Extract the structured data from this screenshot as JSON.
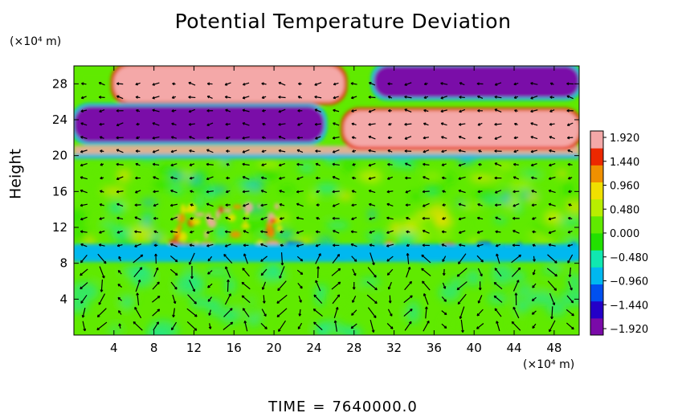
{
  "chart_data": {
    "type": "heatmap",
    "title": "Potential Temperature Deviation",
    "ylabel": "Height",
    "xunit": "(×10⁴ m)",
    "yunit": "(×10⁴ m)",
    "x_ticks": [
      4,
      8,
      12,
      16,
      20,
      24,
      28,
      32,
      36,
      40,
      44,
      48
    ],
    "y_ticks": [
      4,
      8,
      12,
      16,
      20,
      24,
      28
    ],
    "xlim": [
      0,
      50.5
    ],
    "ylim": [
      0,
      30
    ],
    "colorbar": {
      "ticks": [
        1.92,
        1.44,
        0.96,
        0.48,
        0.0,
        -0.48,
        -0.96,
        -1.44,
        -1.92
      ],
      "tick_labels": [
        "1.920",
        "1.440",
        "0.960",
        "0.480",
        "0.000",
        "−0.480",
        "−0.960",
        "−1.440",
        "−1.920"
      ],
      "range": [
        -1.92,
        1.92
      ],
      "colors": [
        "#7a0aa8",
        "#2400c8",
        "#0050f0",
        "#00b8f0",
        "#10e8b0",
        "#22e000",
        "#60ea00",
        "#b8ee00",
        "#f0e000",
        "#f09000",
        "#ec2800",
        "#f4a8a8"
      ]
    },
    "regions": [
      {
        "label": "warm upper band",
        "x": [
          4,
          27
        ],
        "y": [
          26,
          30
        ],
        "value": 1.92
      },
      {
        "label": "cold upper band",
        "x": [
          30,
          50.5
        ],
        "y": [
          26.5,
          30
        ],
        "value": -1.92
      },
      {
        "label": "cold middle band",
        "x": [
          0,
          25
        ],
        "y": [
          21.5,
          25.5
        ],
        "value": -1.92
      },
      {
        "label": "warm middle band",
        "x": [
          27,
          50.5
        ],
        "y": [
          21,
          25
        ],
        "value": 1.92
      },
      {
        "label": "cold lower layer",
        "x": [
          0,
          50.5
        ],
        "y": [
          8.5,
          9.8
        ],
        "value": -0.96
      }
    ],
    "vector_field": true
  },
  "time": {
    "label": "TIME",
    "equals": "=",
    "value": "7640000.0"
  }
}
